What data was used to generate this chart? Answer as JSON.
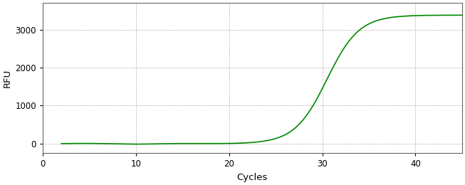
{
  "title": "",
  "xlabel": "Cycles",
  "ylabel": "RFU",
  "xlim": [
    0,
    45
  ],
  "ylim": [
    -250,
    3700
  ],
  "yticks": [
    0,
    1000,
    2000,
    3000
  ],
  "xticks": [
    0,
    10,
    20,
    30,
    40
  ],
  "line_color": "#008800",
  "line_width": 1.2,
  "background_color": "#ffffff",
  "grid_color": "#999999",
  "sigmoid_L": 3380,
  "sigmoid_k": 0.58,
  "sigmoid_x0": 30.5,
  "x_start": 2,
  "x_end": 45,
  "tick_color": "#000000",
  "label_color": "#000000",
  "spine_color": "#666666"
}
